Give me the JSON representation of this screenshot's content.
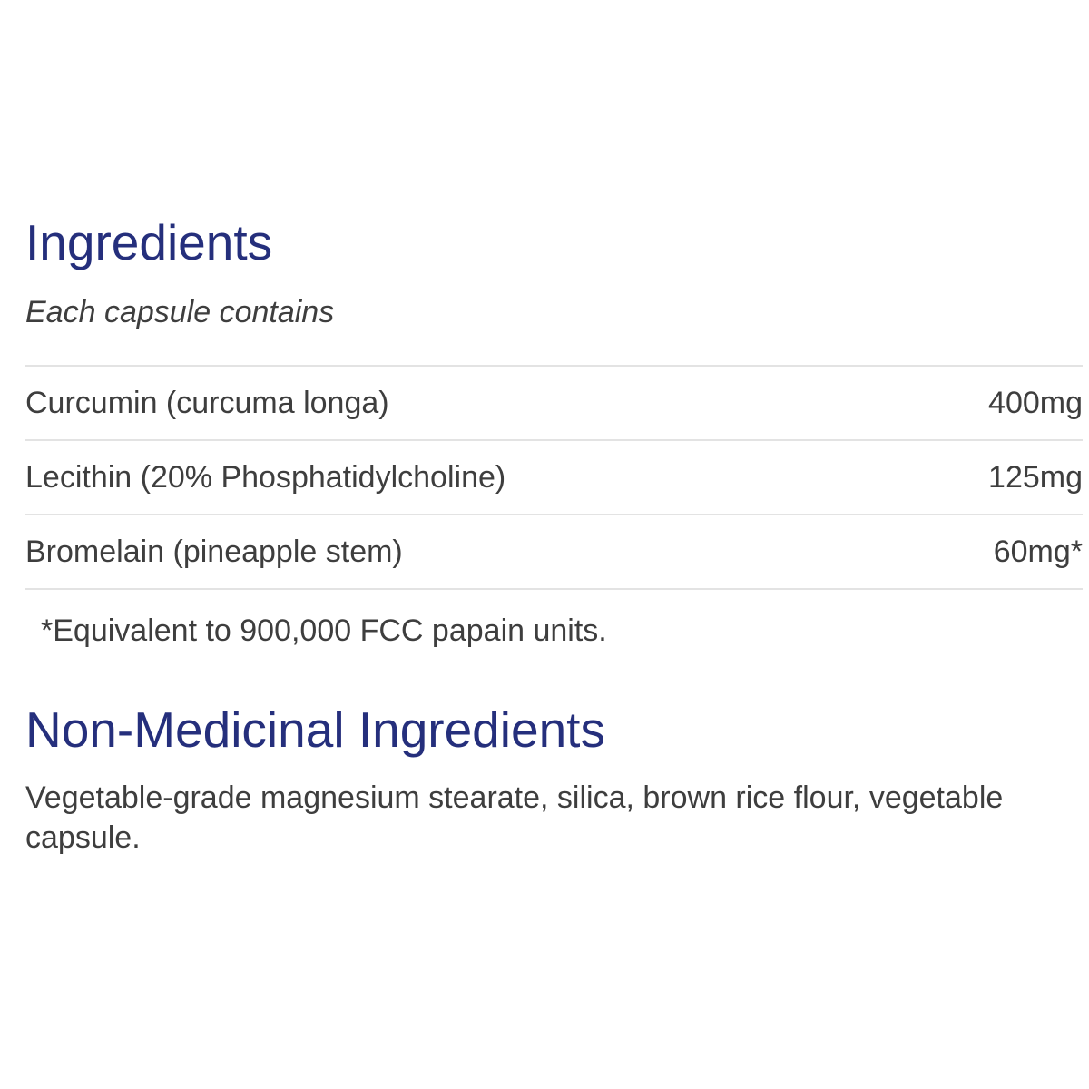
{
  "ingredients": {
    "title": "Ingredients",
    "subtitle": "Each capsule contains",
    "rows": [
      {
        "name": "Curcumin (curcuma longa)",
        "amount": "400mg"
      },
      {
        "name": "Lecithin (20% Phosphatidylcholine)",
        "amount": "125mg"
      },
      {
        "name": "Bromelain (pineapple stem)",
        "amount": "60mg*"
      }
    ],
    "footnote": "*Equivalent to 900,000 FCC papain units."
  },
  "non_medicinal": {
    "title": "Non-Medicinal Ingredients",
    "body": "Vegetable-grade magnesium stearate, silica, brown rice flour, vegetable capsule."
  },
  "colors": {
    "heading": "#252f7c",
    "body_text": "#3e3e3e",
    "divider": "#e3e3e3",
    "background": "#ffffff"
  }
}
